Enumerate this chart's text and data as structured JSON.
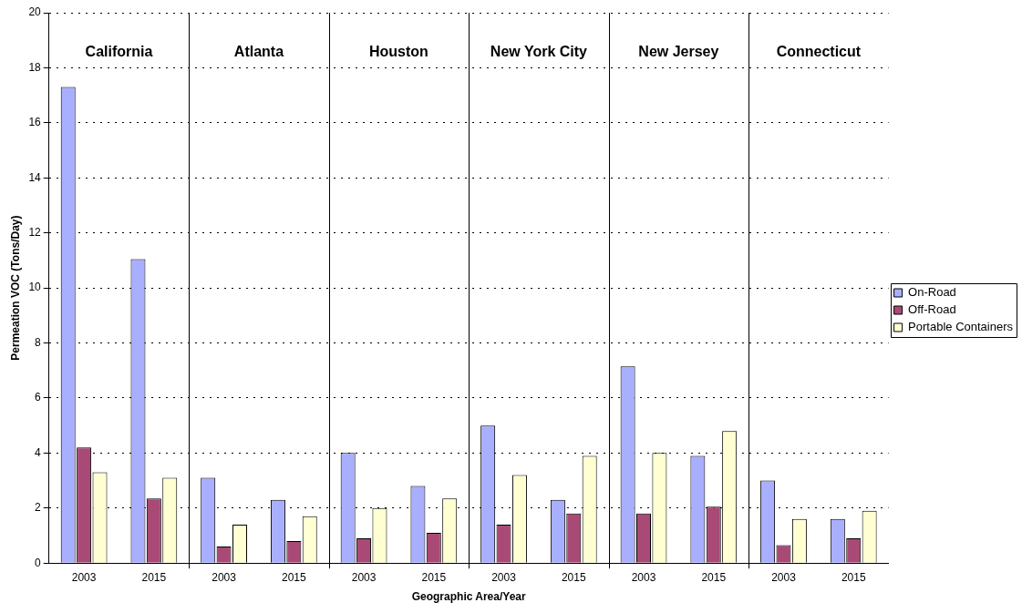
{
  "chart_data": {
    "type": "bar",
    "xlabel": "Geographic Area/Year",
    "ylabel": "Permeation VOC (Tons/Day)",
    "categories": [
      "2003",
      "2015",
      "2003",
      "2015",
      "2003",
      "2015",
      "2003",
      "2015",
      "2003",
      "2015",
      "2003",
      "2015"
    ],
    "annotations": [
      "California",
      "Atlanta",
      "Houston",
      "New York City",
      "New Jersey",
      "Connecticut"
    ],
    "series": [
      {
        "name": "On-Road",
        "color": "#a9afff",
        "values": [
          17.3,
          11.05,
          3.1,
          2.3,
          4.0,
          2.8,
          5.0,
          2.3,
          7.15,
          3.9,
          3.0,
          1.6
        ]
      },
      {
        "name": "Off-Road",
        "color": "#a94a76",
        "values": [
          4.2,
          2.35,
          0.6,
          0.8,
          0.9,
          1.1,
          1.4,
          1.8,
          1.8,
          2.05,
          0.65,
          0.9
        ]
      },
      {
        "name": "Portable Containers",
        "color": "#ffffd2",
        "values": [
          3.3,
          3.1,
          1.4,
          1.7,
          2.0,
          2.35,
          3.2,
          3.9,
          4.0,
          4.8,
          1.6,
          1.9
        ]
      }
    ],
    "ylim": [
      0,
      20
    ],
    "yticks": [
      0,
      2,
      4,
      6,
      8,
      10,
      12,
      14,
      16,
      18,
      20
    ],
    "grid": "y",
    "legend": "right"
  }
}
